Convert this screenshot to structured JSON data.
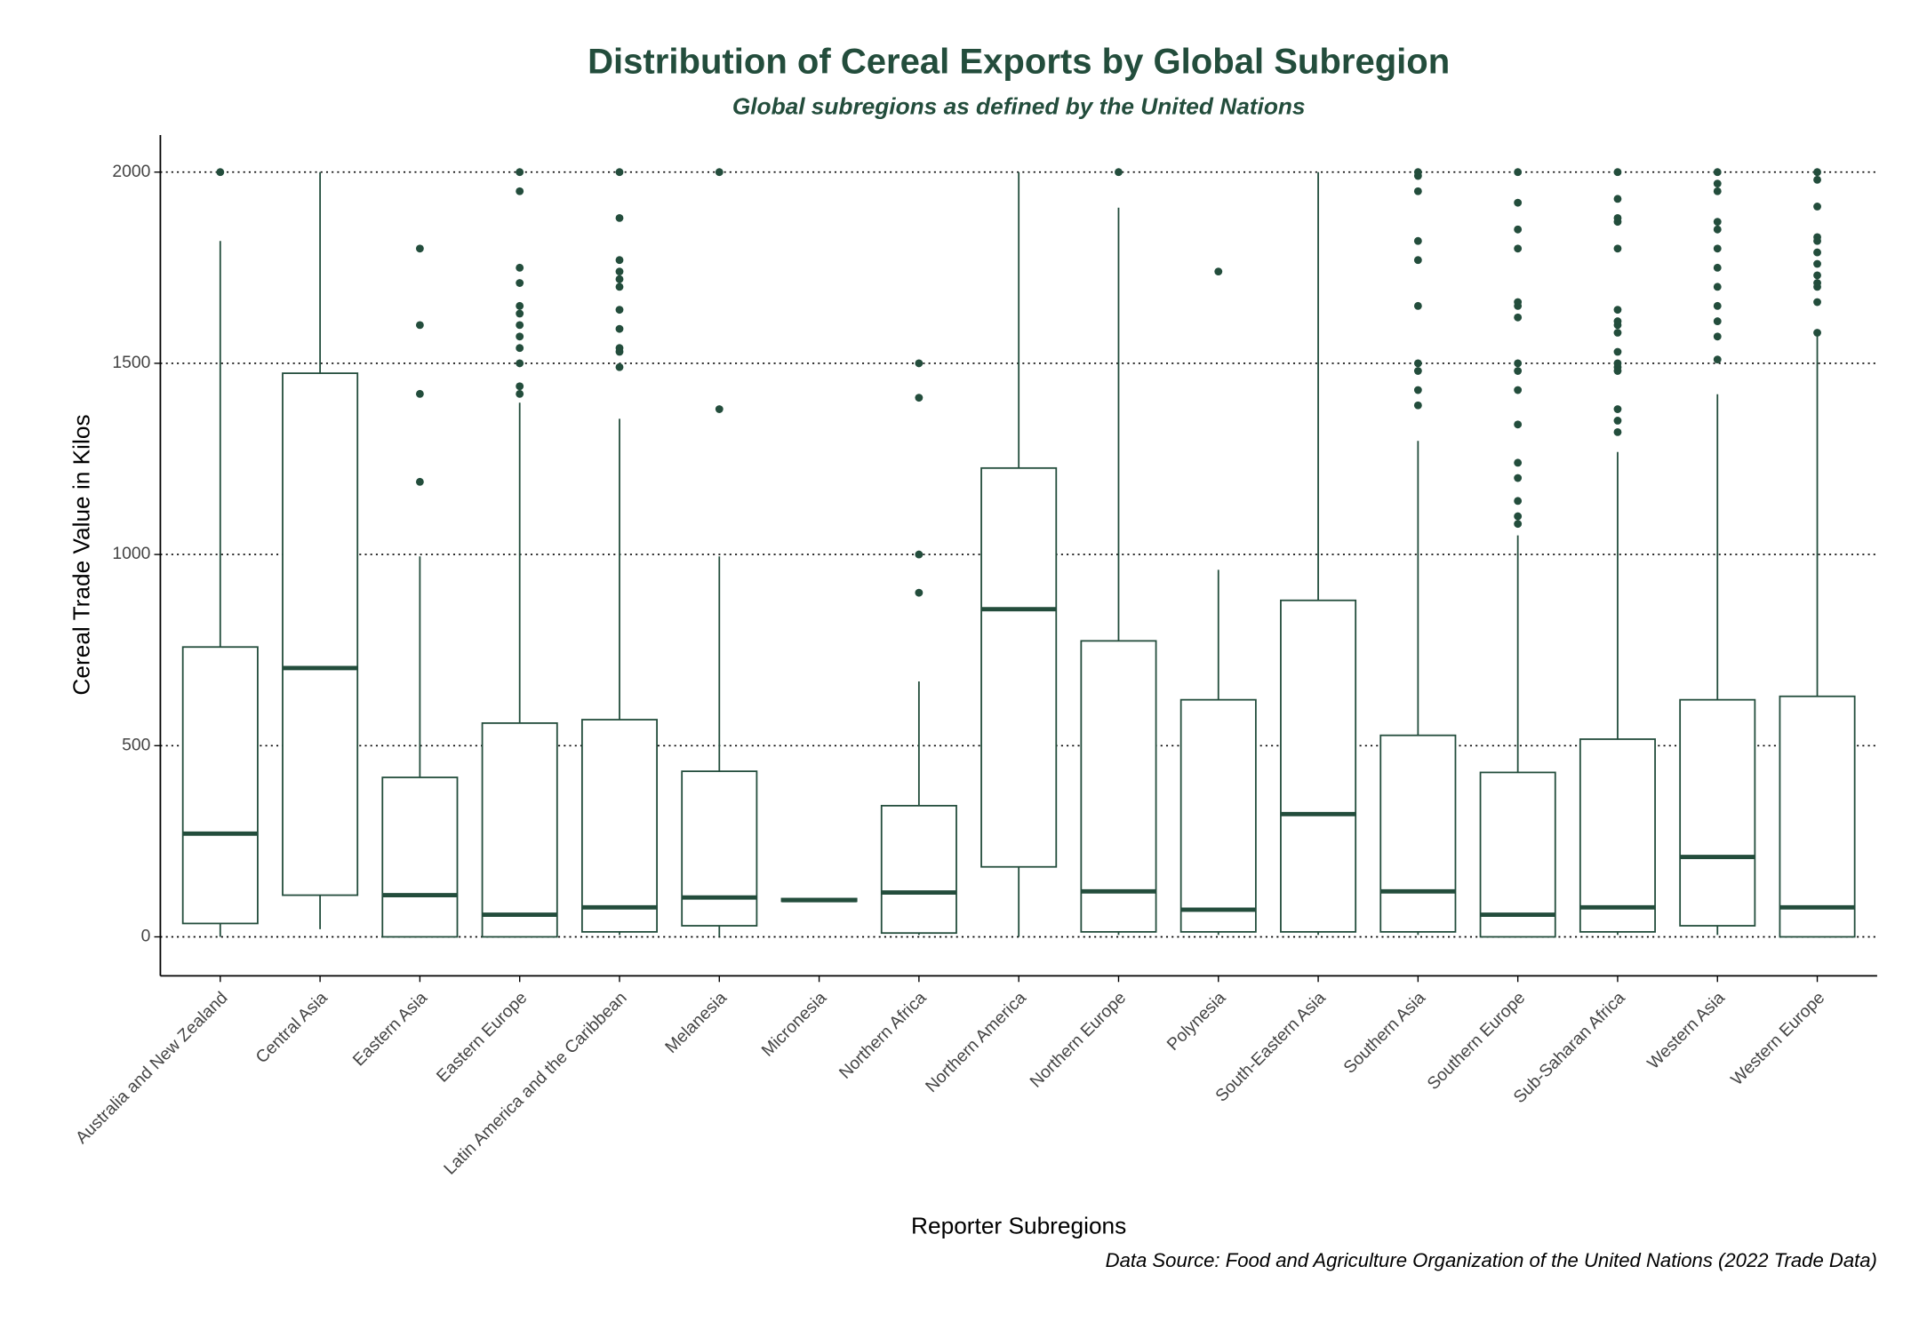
{
  "chart_data": {
    "type": "box",
    "title": "Distribution of Cereal Exports by Global Subregion",
    "subtitle": "Global subregions as defined by the United Nations",
    "x_label": "Reporter Subregions",
    "y_label": "Cereal Trade Value in Kilos",
    "caption": "Data Source: Food and Agriculture Organization of the United Nations (2022 Trade Data)",
    "color": "#234d3c",
    "grid": true,
    "ylim": [
      -102,
      2097
    ],
    "yticks": [
      0,
      500,
      1000,
      1500,
      2000
    ],
    "categories": [
      "Australia and New Zealand",
      "Central Asia",
      "Eastern Asia",
      "Eastern Europe",
      "Latin America and the Caribbean",
      "Melanesia",
      "Micronesia",
      "Northern Africa",
      "Northern America",
      "Northern Europe",
      "Polynesia",
      "South-Eastern Asia",
      "Southern Asia",
      "Southern Europe",
      "Sub-Saharan Africa",
      "Western Asia",
      "Western Europe"
    ],
    "boxes": [
      {
        "low": 0,
        "q1": 35,
        "median": 270,
        "q3": 758,
        "high": 1820,
        "outliers": [
          2000
        ]
      },
      {
        "low": 20,
        "q1": 109,
        "median": 703,
        "q3": 1474,
        "high": 2000,
        "outliers": []
      },
      {
        "low": 0,
        "q1": 0,
        "median": 109,
        "q3": 417,
        "high": 995,
        "outliers": [
          1190,
          1420,
          1600,
          1800
        ]
      },
      {
        "low": 0,
        "q1": 0,
        "median": 58,
        "q3": 559,
        "high": 1397,
        "outliers": [
          1420,
          1440,
          1500,
          1540,
          1570,
          1600,
          1630,
          1650,
          1710,
          1750,
          1950,
          2000
        ]
      },
      {
        "low": 5,
        "q1": 13,
        "median": 77,
        "q3": 568,
        "high": 1355,
        "outliers": [
          1490,
          1530,
          1540,
          1590,
          1640,
          1700,
          1720,
          1740,
          1770,
          1880,
          2000
        ]
      },
      {
        "low": 0,
        "q1": 29,
        "median": 103,
        "q3": 433,
        "high": 995,
        "outliers": [
          1380,
          2000
        ]
      },
      {
        "low": 93,
        "q1": 93,
        "median": 96,
        "q3": 100,
        "high": 100,
        "outliers": []
      },
      {
        "low": 5,
        "q1": 10,
        "median": 116,
        "q3": 343,
        "high": 668,
        "outliers": [
          900,
          1000,
          1410,
          1500
        ]
      },
      {
        "low": 0,
        "q1": 183,
        "median": 857,
        "q3": 1226,
        "high": 2000,
        "outliers": []
      },
      {
        "low": 5,
        "q1": 13,
        "median": 119,
        "q3": 774,
        "high": 1907,
        "outliers": [
          2000
        ]
      },
      {
        "low": 5,
        "q1": 13,
        "median": 71,
        "q3": 620,
        "high": 960,
        "outliers": [
          1740
        ]
      },
      {
        "low": 5,
        "q1": 13,
        "median": 321,
        "q3": 880,
        "high": 2000,
        "outliers": []
      },
      {
        "low": 5,
        "q1": 13,
        "median": 119,
        "q3": 527,
        "high": 1297,
        "outliers": [
          1390,
          1430,
          1480,
          1500,
          1650,
          1770,
          1820,
          1950,
          1990,
          2000
        ]
      },
      {
        "low": 0,
        "q1": 0,
        "median": 58,
        "q3": 430,
        "high": 1050,
        "outliers": [
          1080,
          1100,
          1140,
          1200,
          1240,
          1340,
          1430,
          1480,
          1500,
          1620,
          1650,
          1660,
          1800,
          1850,
          1920,
          2000
        ]
      },
      {
        "low": 5,
        "q1": 13,
        "median": 77,
        "q3": 517,
        "high": 1268,
        "outliers": [
          1320,
          1350,
          1380,
          1480,
          1490,
          1500,
          1530,
          1580,
          1600,
          1610,
          1640,
          1800,
          1870,
          1880,
          1930,
          2000
        ]
      },
      {
        "low": 5,
        "q1": 29,
        "median": 209,
        "q3": 620,
        "high": 1419,
        "outliers": [
          1510,
          1570,
          1610,
          1650,
          1700,
          1750,
          1800,
          1850,
          1870,
          1950,
          1970,
          2000
        ]
      },
      {
        "low": 0,
        "q1": 0,
        "median": 77,
        "q3": 629,
        "high": 1579,
        "outliers": [
          1580,
          1660,
          1700,
          1710,
          1730,
          1760,
          1790,
          1820,
          1830,
          1910,
          1980,
          2000
        ]
      }
    ]
  }
}
